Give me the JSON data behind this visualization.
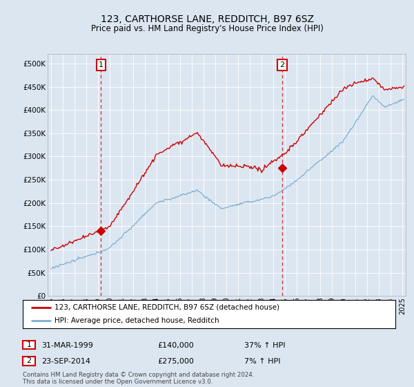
{
  "title": "123, CARTHORSE LANE, REDDITCH, B97 6SZ",
  "subtitle": "Price paid vs. HM Land Registry's House Price Index (HPI)",
  "legend_line1": "123, CARTHORSE LANE, REDDITCH, B97 6SZ (detached house)",
  "legend_line2": "HPI: Average price, detached house, Redditch",
  "annotation1_date": "31-MAR-1999",
  "annotation1_price": "£140,000",
  "annotation1_hpi": "37% ↑ HPI",
  "annotation1_year": 1999.25,
  "annotation1_value": 140000,
  "annotation2_date": "23-SEP-2014",
  "annotation2_price": "£275,000",
  "annotation2_hpi": "7% ↑ HPI",
  "annotation2_year": 2014.75,
  "annotation2_value": 275000,
  "footer": "Contains HM Land Registry data © Crown copyright and database right 2024.\nThis data is licensed under the Open Government Licence v3.0.",
  "red_color": "#cc0000",
  "blue_color": "#7bafd4",
  "background_color": "#dce6f1",
  "plot_bg_color": "#dce6f1",
  "ylim": [
    0,
    520000
  ],
  "yticks": [
    0,
    50000,
    100000,
    150000,
    200000,
    250000,
    300000,
    350000,
    400000,
    450000,
    500000
  ],
  "xmin": 1994.7,
  "xmax": 2025.3
}
